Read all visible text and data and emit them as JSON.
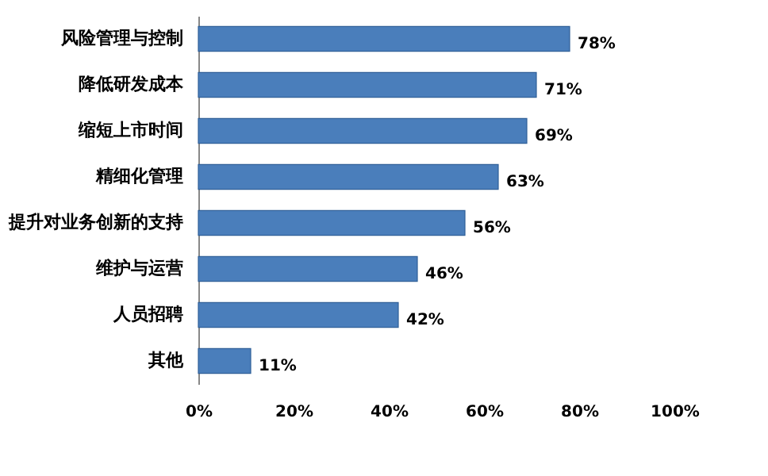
{
  "chart_data": {
    "type": "bar",
    "orientation": "horizontal",
    "categories": [
      "风险管理与控制",
      "降低研发成本",
      "缩短上市时间",
      "精细化管理",
      "提升对业务创新的支持",
      "维护与运营",
      "人员招聘",
      "其他"
    ],
    "values": [
      78,
      71,
      69,
      63,
      56,
      46,
      42,
      11
    ],
    "value_labels": [
      "78%",
      "71%",
      "69%",
      "63%",
      "56%",
      "46%",
      "42%",
      "11%"
    ],
    "color": "#4a7ebb",
    "xlim": [
      0,
      100
    ],
    "xticks": [
      {
        "value": 0,
        "label": "0%"
      },
      {
        "value": 20,
        "label": "20%"
      },
      {
        "value": 40,
        "label": "40%"
      },
      {
        "value": 60,
        "label": "60%"
      },
      {
        "value": 80,
        "label": "80%"
      },
      {
        "value": 100,
        "label": "100%"
      }
    ],
    "grid": false
  }
}
